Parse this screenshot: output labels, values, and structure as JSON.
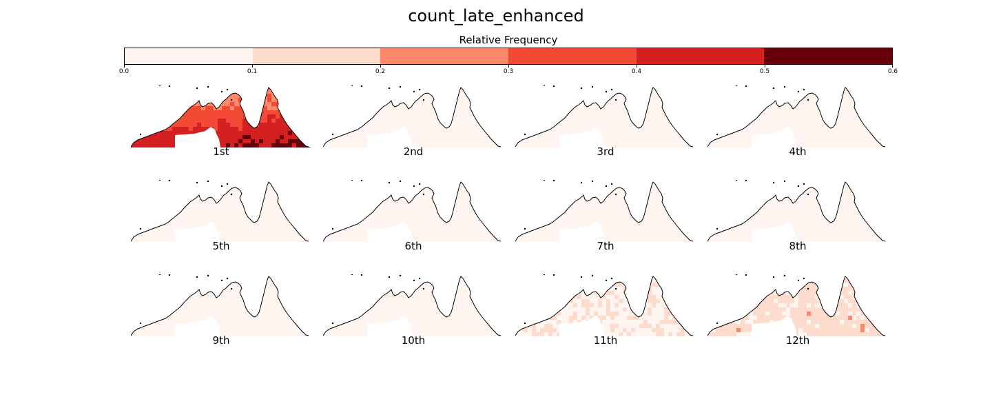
{
  "title": "count_late_enhanced",
  "colorbar": {
    "label": "Relative Frequency",
    "ticks": [
      "0.0",
      "0.1",
      "0.2",
      "0.3",
      "0.4",
      "0.5",
      "0.6"
    ],
    "bounds": [
      0.0,
      0.1,
      0.2,
      0.3,
      0.4,
      0.5,
      0.6
    ],
    "colors": [
      "#fff5f0",
      "#fedccd",
      "#fc8a6a",
      "#f24a35",
      "#d42020",
      "#67000d"
    ]
  },
  "chart_data": {
    "type": "heatmap",
    "title": "count_late_enhanced",
    "colorbar_label": "Relative Frequency",
    "colorbar_range": [
      0.0,
      0.6
    ],
    "colormap": "Reds",
    "layout": "3 rows x 4 columns of maps",
    "panels": [
      {
        "label": "1st",
        "level": 0.35
      },
      {
        "label": "2nd",
        "level": 0.02
      },
      {
        "label": "3rd",
        "level": 0.03
      },
      {
        "label": "4th",
        "level": 0.03
      },
      {
        "label": "5th",
        "level": 0.02
      },
      {
        "label": "6th",
        "level": 0.02
      },
      {
        "label": "7th",
        "level": 0.03
      },
      {
        "label": "8th",
        "level": 0.02
      },
      {
        "label": "9th",
        "level": 0.03
      },
      {
        "label": "10th",
        "level": 0.05
      },
      {
        "label": "11th",
        "level": 0.09
      },
      {
        "label": "12th",
        "level": 0.14
      }
    ]
  }
}
